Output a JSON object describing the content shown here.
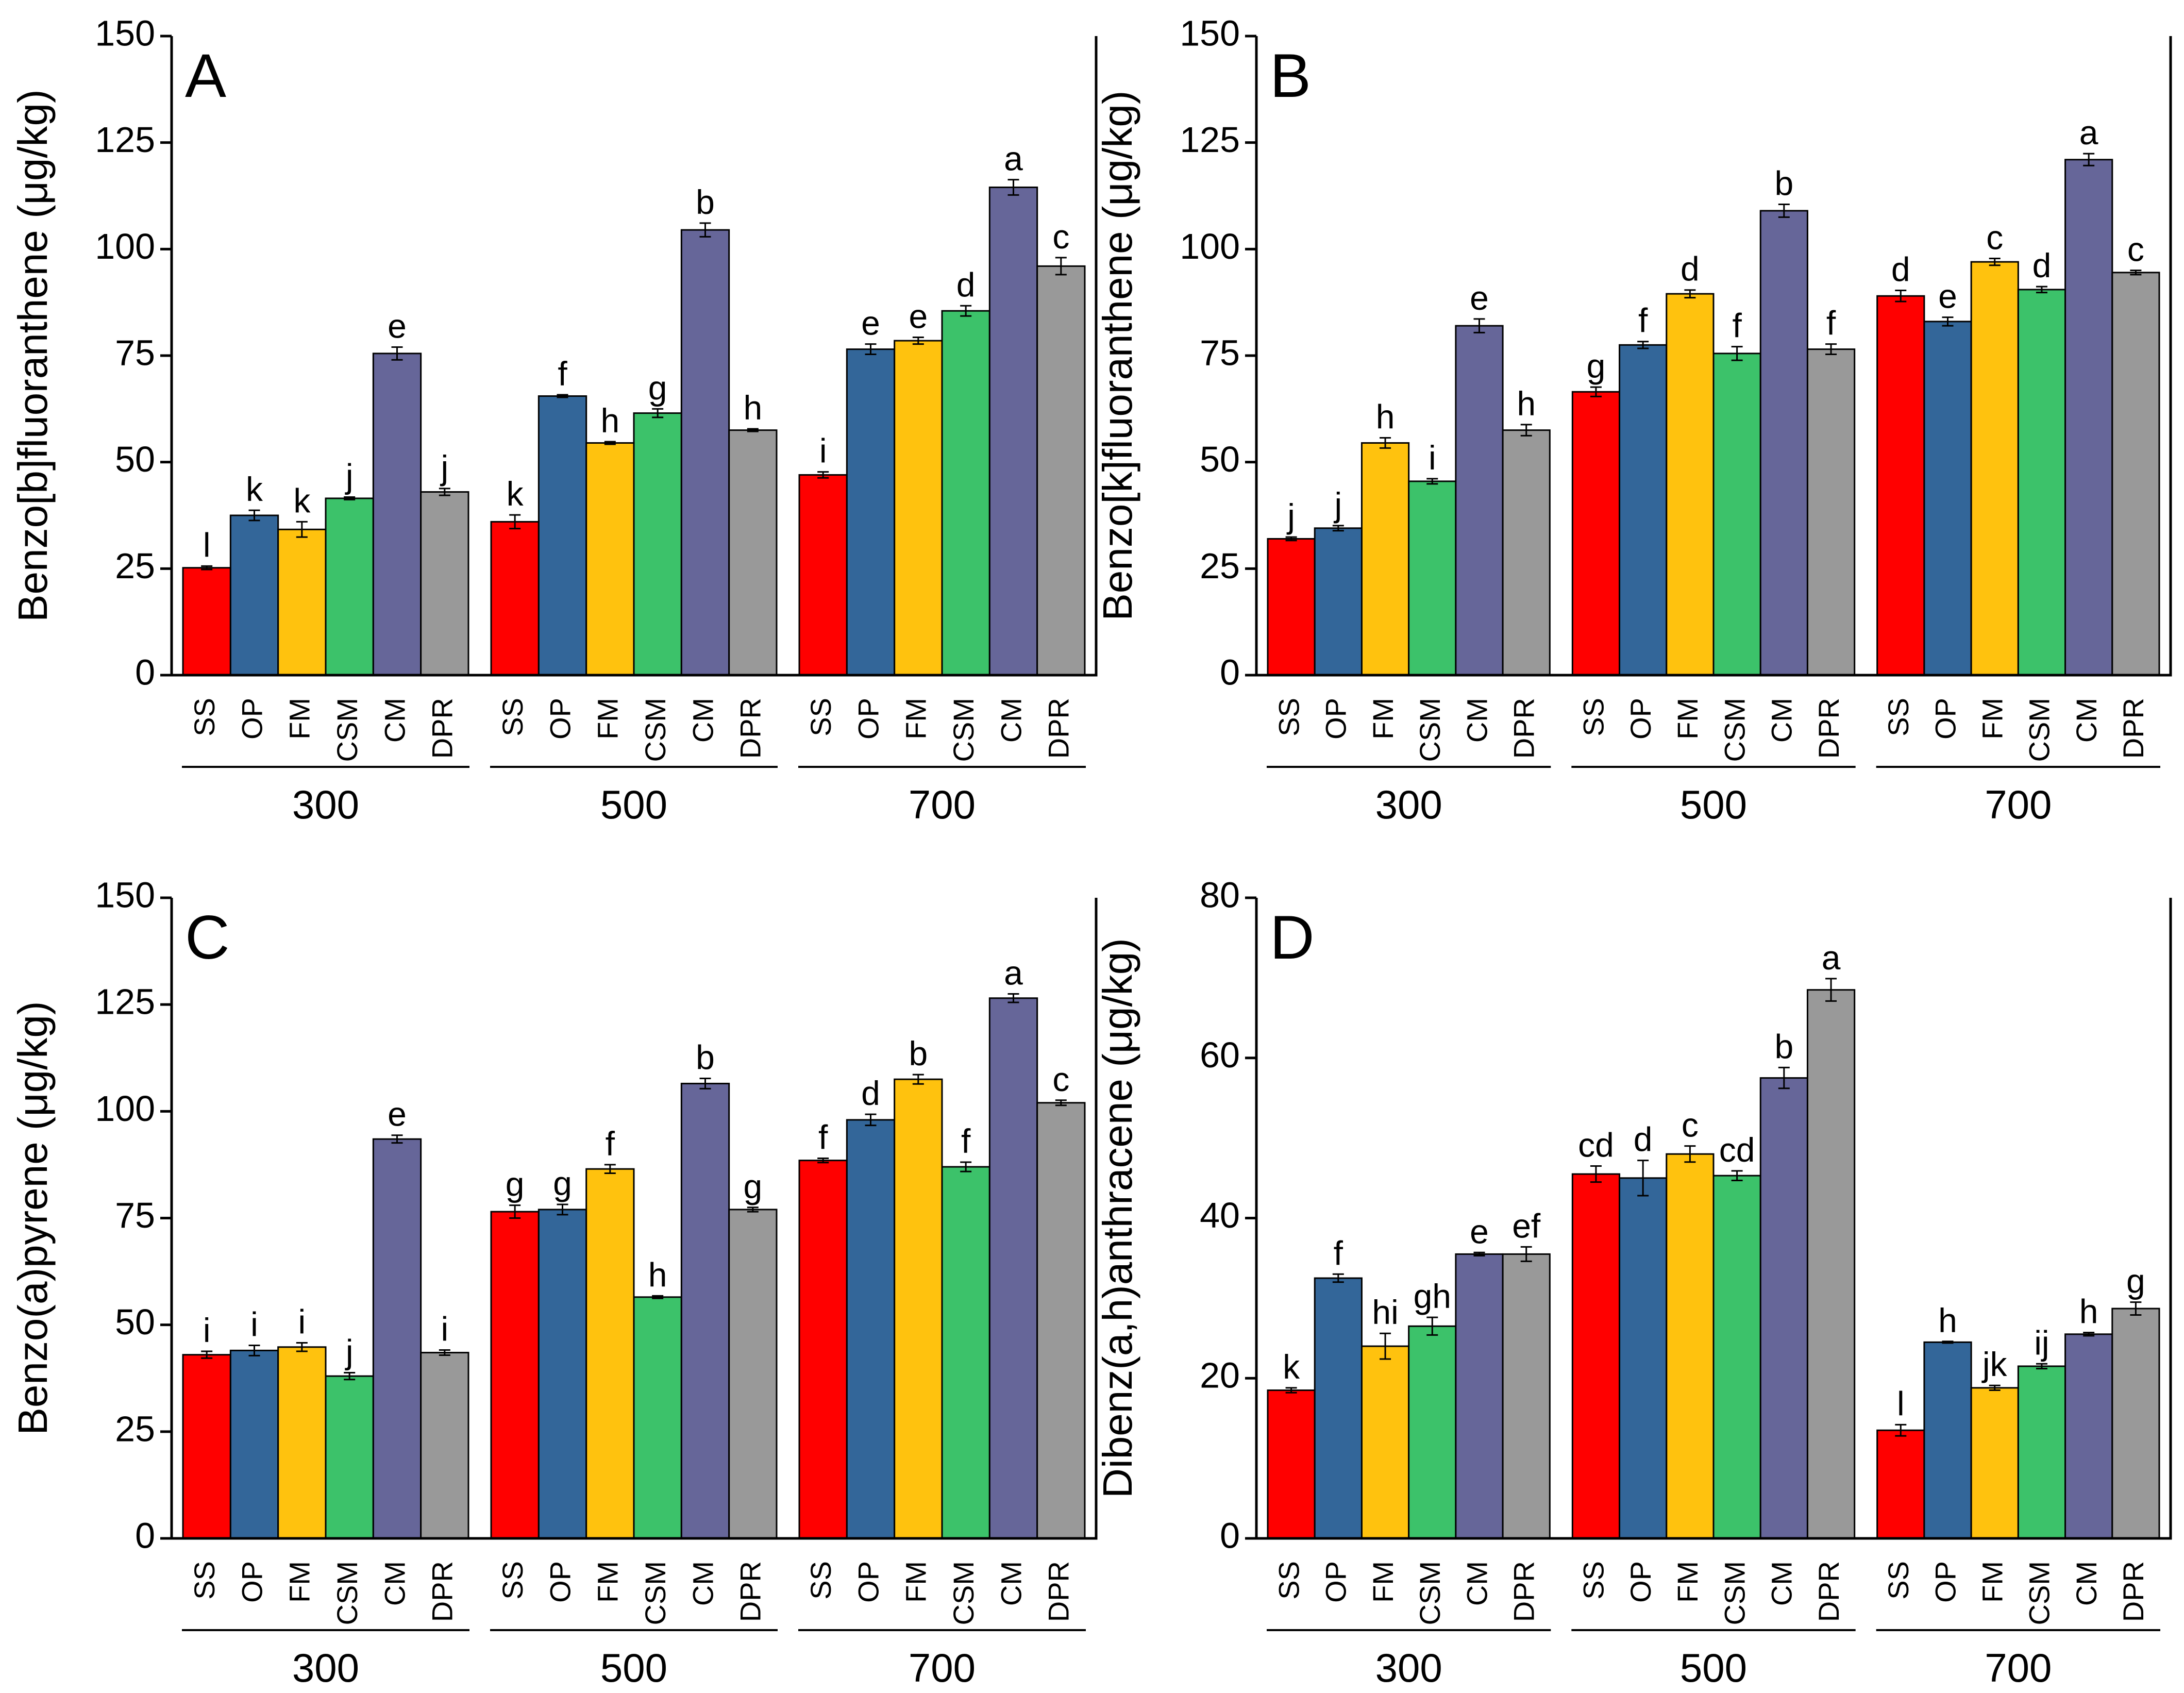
{
  "series_colors": {
    "SS": "#ff0000",
    "OP": "#336699",
    "FM": "#ffc20e",
    "CSM": "#3cc26a",
    "CM": "#666699",
    "DPR": "#999999"
  },
  "chart_data": [
    {
      "type": "bar",
      "panel_label": "A",
      "ylabel": "Benzo[b]fluoranthene (μg/kg)",
      "ylim": [
        0,
        150
      ],
      "yticks": [
        "0",
        "25",
        "50",
        "75",
        "100",
        "125",
        "150"
      ],
      "ytick_values": [
        0,
        25,
        50,
        75,
        100,
        125,
        150
      ],
      "groups": [
        "300",
        "500",
        "700"
      ],
      "categories": [
        "SS",
        "OP",
        "FM",
        "CSM",
        "CM",
        "DPR"
      ],
      "values": [
        [
          25.2,
          37.5,
          34.2,
          41.5,
          75.5,
          43.0
        ],
        [
          36.0,
          65.5,
          54.5,
          61.5,
          104.5,
          57.5
        ],
        [
          47.0,
          76.5,
          78.5,
          85.5,
          114.5,
          96.0
        ]
      ],
      "errors": [
        [
          0.4,
          1.2,
          1.8,
          0.3,
          1.5,
          0.8
        ],
        [
          1.6,
          0.3,
          0.3,
          1.0,
          1.6,
          0.3
        ],
        [
          0.7,
          1.2,
          0.8,
          1.2,
          1.8,
          2.0
        ]
      ],
      "letters": [
        [
          "l",
          "k",
          "k",
          "j",
          "e",
          "j"
        ],
        [
          "k",
          "f",
          "h",
          "g",
          "b",
          "h"
        ],
        [
          "i",
          "e",
          "e",
          "d",
          "a",
          "c"
        ]
      ]
    },
    {
      "type": "bar",
      "panel_label": "B",
      "ylabel": "Benzo[k]fluoranthene (μg/kg)",
      "ylim": [
        0,
        150
      ],
      "yticks": [
        "0",
        "25",
        "50",
        "75",
        "100",
        "125",
        "150"
      ],
      "ytick_values": [
        0,
        25,
        50,
        75,
        100,
        125,
        150
      ],
      "groups": [
        "300",
        "500",
        "700"
      ],
      "categories": [
        "SS",
        "OP",
        "FM",
        "CSM",
        "CM",
        "DPR"
      ],
      "values": [
        [
          32.0,
          34.5,
          54.5,
          45.5,
          82.0,
          57.5
        ],
        [
          66.5,
          77.5,
          89.5,
          75.5,
          109.0,
          76.5
        ],
        [
          89.0,
          83.0,
          97.0,
          90.5,
          121.0,
          94.5
        ]
      ],
      "errors": [
        [
          0.4,
          0.6,
          1.2,
          0.6,
          1.6,
          1.3
        ],
        [
          1.1,
          0.8,
          0.9,
          1.6,
          1.5,
          1.2
        ],
        [
          1.3,
          1.0,
          0.8,
          0.7,
          1.4,
          0.5
        ]
      ],
      "letters": [
        [
          "j",
          "j",
          "h",
          "i",
          "e",
          "h"
        ],
        [
          "g",
          "f",
          "d",
          "f",
          "b",
          "f"
        ],
        [
          "d",
          "e",
          "c",
          "d",
          "a",
          "c"
        ]
      ]
    },
    {
      "type": "bar",
      "panel_label": "C",
      "ylabel": "Benzo(a)pyrene (μg/kg)",
      "ylim": [
        0,
        150
      ],
      "yticks": [
        "0",
        "25",
        "50",
        "75",
        "100",
        "125",
        "150"
      ],
      "ytick_values": [
        0,
        25,
        50,
        75,
        100,
        125,
        150
      ],
      "groups": [
        "300",
        "500",
        "700"
      ],
      "categories": [
        "SS",
        "OP",
        "FM",
        "CSM",
        "CM",
        "DPR"
      ],
      "values": [
        [
          43.0,
          44.0,
          44.8,
          38.0,
          93.5,
          43.5
        ],
        [
          76.5,
          77.0,
          86.5,
          56.5,
          106.5,
          77.0
        ],
        [
          88.5,
          98.0,
          107.5,
          87.0,
          126.5,
          102.0
        ]
      ],
      "errors": [
        [
          0.8,
          1.2,
          1.0,
          0.8,
          0.9,
          0.6
        ],
        [
          1.5,
          1.2,
          1.0,
          0.3,
          1.2,
          0.5
        ],
        [
          0.5,
          1.3,
          1.1,
          1.1,
          1.0,
          0.6
        ]
      ],
      "letters": [
        [
          "i",
          "i",
          "i",
          "j",
          "e",
          "i"
        ],
        [
          "g",
          "g",
          "f",
          "h",
          "b",
          "g"
        ],
        [
          "f",
          "d",
          "b",
          "f",
          "a",
          "c"
        ]
      ]
    },
    {
      "type": "bar",
      "panel_label": "D",
      "ylabel": "Dibenz(a,h)anthracene (μg/kg)",
      "ylim": [
        0,
        80
      ],
      "yticks": [
        "0",
        "20",
        "40",
        "60",
        "80"
      ],
      "ytick_values": [
        0,
        20,
        40,
        60,
        80
      ],
      "groups": [
        "300",
        "500",
        "700"
      ],
      "categories": [
        "SS",
        "OP",
        "FM",
        "CSM",
        "CM",
        "DPR"
      ],
      "values": [
        [
          18.5,
          32.5,
          24.0,
          26.5,
          35.5,
          35.5
        ],
        [
          45.5,
          45.0,
          48.0,
          45.3,
          57.5,
          68.5
        ],
        [
          13.5,
          24.5,
          18.8,
          21.5,
          25.5,
          28.7
        ]
      ],
      "errors": [
        [
          0.3,
          0.5,
          1.6,
          1.1,
          0.2,
          0.9
        ],
        [
          1.0,
          2.2,
          1.0,
          0.6,
          1.3,
          1.4
        ],
        [
          0.7,
          0.1,
          0.3,
          0.3,
          0.2,
          0.8
        ]
      ],
      "letters": [
        [
          "k",
          "f",
          "hi",
          "gh",
          "e",
          "ef"
        ],
        [
          "cd",
          "d",
          "c",
          "cd",
          "b",
          "a"
        ],
        [
          "l",
          "h",
          "jk",
          "ij",
          "h",
          "g"
        ]
      ]
    }
  ]
}
